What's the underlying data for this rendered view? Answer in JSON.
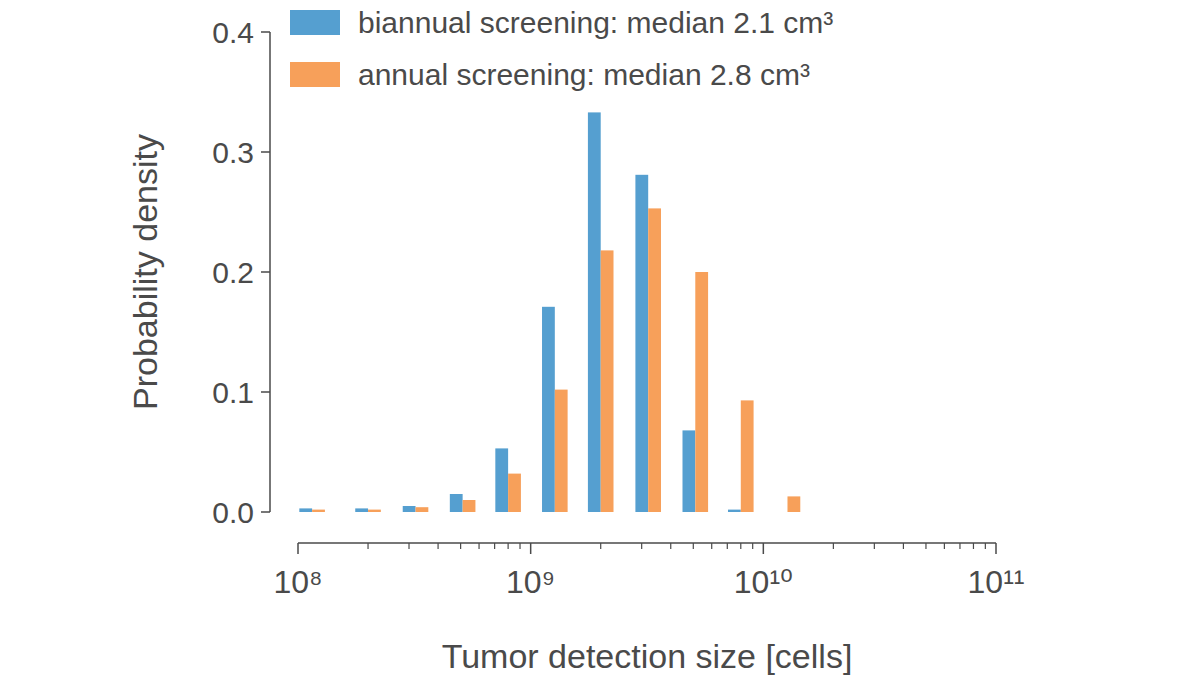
{
  "chart_data": {
    "type": "bar",
    "x_label": "Tumor detection size [cells]",
    "y_label": "Probability density",
    "x": [
      115000000,
      200000000,
      320000000,
      510000000,
      800000000,
      1270000000,
      2000000000,
      3200000000,
      5100000000,
      8000000000,
      12700000000
    ],
    "series": [
      {
        "name": "biannual screening: median 2.1 cm³",
        "color": "#559fd0",
        "values": [
          0.003,
          0.003,
          0.005,
          0.015,
          0.053,
          0.171,
          0.333,
          0.281,
          0.068,
          0.002,
          0.0
        ]
      },
      {
        "name": "annual screening: median 2.8 cm³",
        "color": "#f7a05a",
        "values": [
          0.002,
          0.002,
          0.004,
          0.01,
          0.032,
          0.102,
          0.218,
          0.253,
          0.2,
          0.093,
          0.013
        ]
      }
    ],
    "log": "x",
    "xlim": [
      100000000,
      100000000000
    ],
    "xticks": [
      {
        "value": 100000000,
        "label": "10⁸"
      },
      {
        "value": 1000000000,
        "label": "10⁹"
      },
      {
        "value": 10000000000,
        "label": "10¹⁰"
      },
      {
        "value": 100000000000,
        "label": "10¹¹"
      }
    ],
    "ylim": [
      0,
      0.4
    ],
    "yticks": [
      {
        "value": 0,
        "label": "0.0"
      },
      0.1,
      0.2,
      0.3,
      0.4
    ],
    "grid": false,
    "legend": "upper left"
  }
}
